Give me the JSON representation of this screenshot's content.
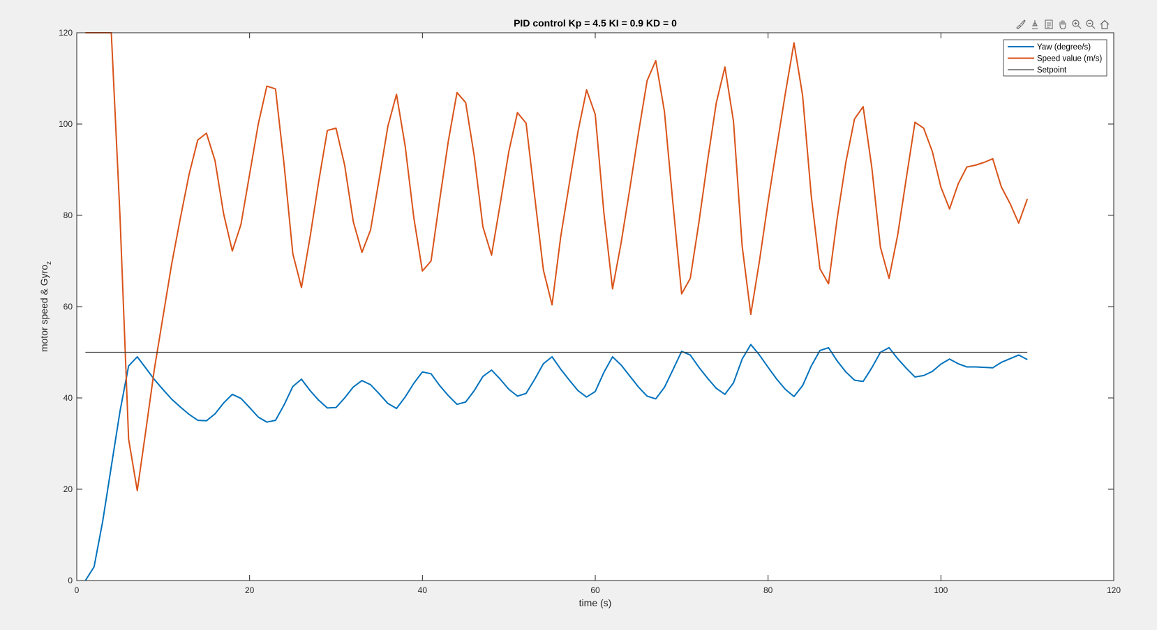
{
  "toolbar": {
    "icons": [
      "brush-icon",
      "data-tips-icon",
      "export-icon",
      "pan-icon",
      "zoom-in-icon",
      "zoom-out-icon",
      "home-icon"
    ]
  },
  "colors": {
    "yaw": "#0072BD",
    "speed": "#D95319",
    "setpoint": "#404040",
    "background": "#f0f0f0",
    "axes": "#ffffff"
  },
  "chart_data": {
    "type": "line",
    "title": "PID control Kp = 4.5 KI = 0.9 KD = 0",
    "xlabel": "time (s)",
    "ylabel": "motor speed & Gyro",
    "ylabel_sub": "z",
    "xlim": [
      0,
      120
    ],
    "ylim": [
      0,
      120
    ],
    "xticks": [
      0,
      20,
      40,
      60,
      80,
      100,
      120
    ],
    "yticks": [
      0,
      20,
      40,
      60,
      80,
      100,
      120
    ],
    "grid": false,
    "legend_position": "top-right",
    "series": [
      {
        "name": "Yaw (degree/s)",
        "x": [
          1,
          2,
          3,
          4,
          5,
          6,
          7,
          8,
          9,
          10,
          11,
          12,
          13,
          14,
          15,
          16,
          17,
          18,
          19,
          20,
          21,
          22,
          23,
          24,
          25,
          26,
          27,
          28,
          29,
          30,
          31,
          32,
          33,
          34,
          35,
          36,
          37,
          38,
          39,
          40,
          41,
          42,
          43,
          44,
          45,
          46,
          47,
          48,
          49,
          50,
          51,
          52,
          53,
          54,
          55,
          56,
          57,
          58,
          59,
          60,
          61,
          62,
          63,
          64,
          65,
          66,
          67,
          68,
          69,
          70,
          71,
          72,
          73,
          74,
          75,
          76,
          77,
          78,
          79,
          80,
          81,
          82,
          83,
          84,
          85,
          86,
          87,
          88,
          89,
          90,
          91,
          92,
          93,
          94,
          95,
          96,
          97,
          98,
          99,
          100,
          101,
          102,
          103,
          104,
          105,
          106,
          107,
          108,
          109,
          110
        ],
        "y": [
          0,
          3,
          13,
          25,
          37,
          47,
          49,
          46.5,
          44,
          41.8,
          39.7,
          38,
          36.4,
          35.1,
          35,
          36.5,
          38.9,
          40.8,
          39.9,
          37.9,
          35.8,
          34.7,
          35.1,
          38.5,
          42.5,
          44.1,
          41.6,
          39.5,
          37.8,
          37.9,
          40,
          42.4,
          43.8,
          42.9,
          40.9,
          38.8,
          37.7,
          40.2,
          43.2,
          45.7,
          45.3,
          42.7,
          40.5,
          38.6,
          39.1,
          41.6,
          44.7,
          46.1,
          44.1,
          41.9,
          40.4,
          41,
          44.1,
          47.5,
          49,
          46.3,
          43.9,
          41.6,
          40.2,
          41.4,
          45.6,
          49,
          47.2,
          44.8,
          42.4,
          40.4,
          39.8,
          42.3,
          46.2,
          50.2,
          49.4,
          46.7,
          44.3,
          42.1,
          40.8,
          43.3,
          48.5,
          51.7,
          49.4,
          46.7,
          44.1,
          41.9,
          40.3,
          42.7,
          47,
          50.4,
          51,
          48.1,
          45.7,
          43.9,
          43.6,
          46.6,
          50,
          51,
          48.6,
          46.5,
          44.6,
          44.9,
          45.8,
          47.4,
          48.5,
          47.5,
          46.8,
          46.8,
          46.7,
          46.6,
          47.8,
          48.6,
          49.4,
          48.4
        ]
      },
      {
        "name": "Speed value (m/s)",
        "x": [
          1,
          2,
          3,
          4,
          5,
          6,
          7,
          8,
          9,
          10,
          11,
          12,
          13,
          14,
          15,
          16,
          17,
          18,
          19,
          20,
          21,
          22,
          23,
          24,
          25,
          26,
          27,
          28,
          29,
          30,
          31,
          32,
          33,
          34,
          35,
          36,
          37,
          38,
          39,
          40,
          41,
          42,
          43,
          44,
          45,
          46,
          47,
          48,
          49,
          50,
          51,
          52,
          53,
          54,
          55,
          56,
          57,
          58,
          59,
          60,
          61,
          62,
          63,
          64,
          65,
          66,
          67,
          68,
          69,
          70,
          71,
          72,
          73,
          74,
          75,
          76,
          77,
          78,
          79,
          80,
          81,
          82,
          83,
          84,
          85,
          86,
          87,
          88,
          89,
          90,
          91,
          92,
          93,
          94,
          95,
          96,
          97,
          98,
          99,
          100,
          101,
          102,
          103,
          104,
          105,
          106,
          107,
          108,
          109,
          110
        ],
        "y": [
          120,
          120,
          120,
          120,
          80,
          31,
          19.7,
          33,
          46.5,
          58,
          69.5,
          79.5,
          89,
          96.5,
          98,
          92,
          80.3,
          72.2,
          78,
          89,
          100,
          108.3,
          107.7,
          91,
          71.6,
          64.2,
          75.3,
          87.4,
          98.6,
          99.1,
          91,
          78.6,
          71.9,
          76.8,
          88,
          99.5,
          106.5,
          95.2,
          79.5,
          67.8,
          70,
          83.4,
          96.3,
          106.9,
          104.7,
          93,
          77.5,
          71.3,
          82.5,
          94,
          102.5,
          100.2,
          84,
          68,
          60.4,
          75.3,
          87,
          98.3,
          107.5,
          102.1,
          80.5,
          63.9,
          74,
          85.8,
          98,
          109.5,
          113.9,
          102.8,
          82.5,
          62.8,
          66.2,
          78.5,
          92,
          104.6,
          112.5,
          100.6,
          73.3,
          58.3,
          70,
          83,
          95,
          106.7,
          117.8,
          106.2,
          84.2,
          68.3,
          65,
          79.3,
          91.6,
          101.1,
          103.8,
          90.5,
          73,
          66.2,
          75.7,
          88.2,
          100.4,
          99.1,
          94,
          86.2,
          81.4,
          86.9,
          90.6,
          91,
          91.6,
          92.4,
          86.2,
          82.6,
          78.3,
          83.6
        ]
      },
      {
        "name": "Setpoint",
        "x": [
          1,
          110
        ],
        "y": [
          50,
          50
        ]
      }
    ]
  }
}
